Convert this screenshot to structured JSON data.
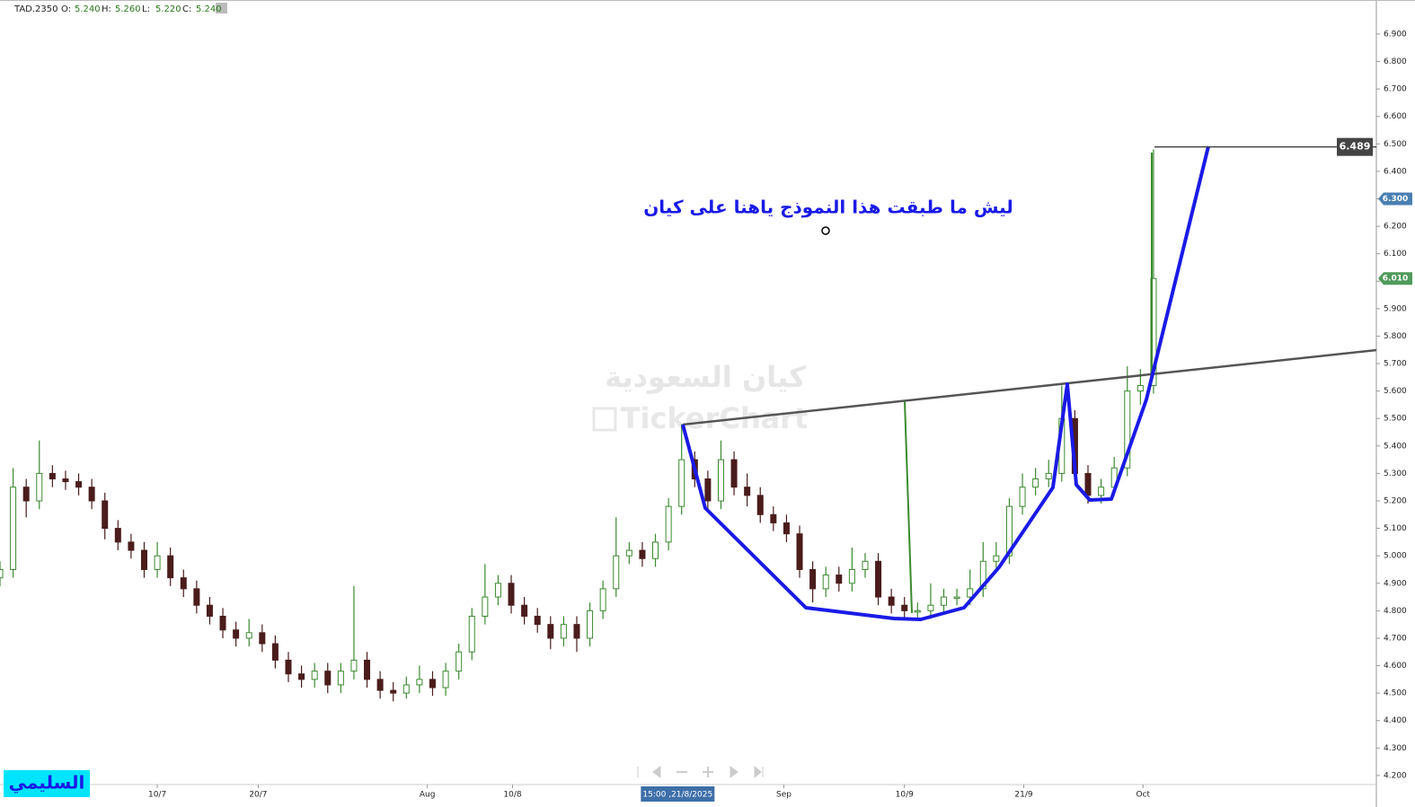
{
  "header": {
    "symbol": "TAD.2350",
    "ohlc": [
      {
        "label": "O:",
        "value": "5.240"
      },
      {
        "label": "H:",
        "value": "5.260"
      },
      {
        "label": "L:",
        "value": "5.220"
      },
      {
        "label": "C:",
        "value": "5.240"
      }
    ]
  },
  "chart_data": {
    "type": "candlestick",
    "annotation": "ليش ما طبقت هذا النموذج ياهنا على كيان",
    "watermark": "كيان السعودية",
    "brand": "TickerChart",
    "author": "السليمي",
    "crosshair_label": "15:00 ,21/8/2025",
    "up_color": "#3a8a2e",
    "down_color": "#4a1c1c",
    "xlim": [
      0,
      105
    ],
    "xticks": [
      {
        "value": 12,
        "label": "10/7"
      },
      {
        "value": 19.7,
        "label": "20/7"
      },
      {
        "value": 32.6,
        "label": "Aug"
      },
      {
        "value": 39.1,
        "label": "10/8"
      },
      {
        "value": 59.8,
        "label": "Sep"
      },
      {
        "value": 69,
        "label": "10/9"
      },
      {
        "value": 78.1,
        "label": "21/9"
      },
      {
        "value": 87.2,
        "label": "Oct"
      }
    ],
    "crosshair_x": 51.7,
    "ylim": [
      4.167,
      7.024
    ],
    "yticks": [
      {
        "value": 4.2,
        "label": "4.200"
      },
      {
        "value": 4.3,
        "label": "4.300"
      },
      {
        "value": 4.4,
        "label": "4.400"
      },
      {
        "value": 4.5,
        "label": "4.500"
      },
      {
        "value": 4.6,
        "label": "4.600"
      },
      {
        "value": 4.7,
        "label": "4.700"
      },
      {
        "value": 4.8,
        "label": "4.800"
      },
      {
        "value": 4.9,
        "label": "4.900"
      },
      {
        "value": 5.0,
        "label": "5.000"
      },
      {
        "value": 5.1,
        "label": "5.100"
      },
      {
        "value": 5.2,
        "label": "5.200"
      },
      {
        "value": 5.3,
        "label": "5.300"
      },
      {
        "value": 5.4,
        "label": "5.400"
      },
      {
        "value": 5.5,
        "label": "5.500"
      },
      {
        "value": 5.6,
        "label": "5.600"
      },
      {
        "value": 5.7,
        "label": "5.700"
      },
      {
        "value": 5.8,
        "label": "5.800"
      },
      {
        "value": 5.9,
        "label": "5.900"
      },
      {
        "value": 6.0,
        "label": "6.000"
      },
      {
        "value": 6.1,
        "label": "6.100"
      },
      {
        "value": 6.2,
        "label": "6.200"
      },
      {
        "value": 6.3,
        "label": "6.300"
      },
      {
        "value": 6.4,
        "label": "6.400"
      },
      {
        "value": 6.5,
        "label": "6.500"
      },
      {
        "value": 6.6,
        "label": "6.600"
      },
      {
        "value": 6.7,
        "label": "6.700"
      },
      {
        "value": 6.8,
        "label": "6.800"
      },
      {
        "value": 6.9,
        "label": "6.900"
      }
    ],
    "price_labels": [
      {
        "value": 6.489,
        "color": "#444444",
        "line": true
      },
      {
        "value": 6.3,
        "label": "6.300",
        "color": "#4a7fb0"
      },
      {
        "value": 6.01,
        "label": "6.010",
        "color": "#4f9a5a"
      }
    ],
    "x": [
      0,
      1,
      2,
      3,
      4,
      5,
      6,
      7,
      8,
      9,
      10,
      11,
      12,
      13,
      14,
      15,
      16,
      17,
      18,
      19,
      20,
      21,
      22,
      23,
      24,
      25,
      26,
      27,
      28,
      29,
      30,
      31,
      32,
      33,
      34,
      35,
      36,
      37,
      38,
      39,
      40,
      41,
      42,
      43,
      44,
      45,
      46,
      47,
      48,
      49,
      50,
      51,
      52,
      53,
      54,
      55,
      56,
      57,
      58,
      59,
      60,
      61,
      62,
      63,
      64,
      65,
      66,
      67,
      68,
      69,
      70,
      71,
      72,
      73,
      74,
      75,
      76,
      77,
      78,
      79,
      80,
      81,
      82,
      83,
      84,
      85,
      86,
      87,
      88
    ],
    "open": [
      4.92,
      4.95,
      5.25,
      5.2,
      5.3,
      5.28,
      5.27,
      5.25,
      5.2,
      5.1,
      5.05,
      5.02,
      4.95,
      5.0,
      4.92,
      4.88,
      4.82,
      4.78,
      4.73,
      4.7,
      4.72,
      4.68,
      4.62,
      4.57,
      4.55,
      4.58,
      4.53,
      4.58,
      4.62,
      4.55,
      4.51,
      4.5,
      4.53,
      4.55,
      4.52,
      4.58,
      4.65,
      4.78,
      4.85,
      4.9,
      4.82,
      4.78,
      4.75,
      4.7,
      4.75,
      4.7,
      4.8,
      4.88,
      5.0,
      5.02,
      4.99,
      5.05,
      5.18,
      5.35,
      5.28,
      5.2,
      5.35,
      5.25,
      5.22,
      5.15,
      5.12,
      5.08,
      4.95,
      4.88,
      4.93,
      4.9,
      4.95,
      4.98,
      4.85,
      4.82,
      4.8,
      4.8,
      4.82,
      4.85,
      4.85,
      4.88,
      4.98,
      5.0,
      5.18,
      5.25,
      5.28,
      5.3,
      5.5,
      5.3,
      5.22,
      5.25,
      5.32,
      5.6,
      5.62
    ],
    "high": [
      4.98,
      5.32,
      5.28,
      5.42,
      5.33,
      5.31,
      5.3,
      5.28,
      5.23,
      5.13,
      5.08,
      5.05,
      5.05,
      5.03,
      4.95,
      4.91,
      4.85,
      4.81,
      4.76,
      4.77,
      4.75,
      4.71,
      4.65,
      4.6,
      4.61,
      4.61,
      4.61,
      4.89,
      4.65,
      4.58,
      4.54,
      4.56,
      4.6,
      4.58,
      4.61,
      4.68,
      4.81,
      4.97,
      4.93,
      4.93,
      4.85,
      4.81,
      4.78,
      4.78,
      4.78,
      4.83,
      4.91,
      5.14,
      5.05,
      5.05,
      5.08,
      5.21,
      5.48,
      5.38,
      5.31,
      5.42,
      5.38,
      5.3,
      5.25,
      5.18,
      5.15,
      5.11,
      4.98,
      4.96,
      4.96,
      5.03,
      5.01,
      5.01,
      4.88,
      4.85,
      4.83,
      4.9,
      4.88,
      4.88,
      4.95,
      5.05,
      5.05,
      5.21,
      5.3,
      5.32,
      5.35,
      5.62,
      5.53,
      5.33,
      5.28,
      5.36,
      5.69,
      5.68,
      6.48
    ],
    "low": [
      4.89,
      4.92,
      5.14,
      5.17,
      5.25,
      5.24,
      5.22,
      5.17,
      5.06,
      5.02,
      4.99,
      4.92,
      4.92,
      4.89,
      4.85,
      4.79,
      4.75,
      4.7,
      4.67,
      4.67,
      4.65,
      4.59,
      4.54,
      4.52,
      4.52,
      4.5,
      4.5,
      4.55,
      4.52,
      4.48,
      4.47,
      4.48,
      4.5,
      4.49,
      4.49,
      4.55,
      4.62,
      4.75,
      4.82,
      4.79,
      4.75,
      4.72,
      4.66,
      4.67,
      4.65,
      4.67,
      4.77,
      4.85,
      4.97,
      4.96,
      4.96,
      5.02,
      5.15,
      5.25,
      5.17,
      5.17,
      5.22,
      5.18,
      5.12,
      5.09,
      5.05,
      4.92,
      4.83,
      4.85,
      4.87,
      4.87,
      4.92,
      4.82,
      4.79,
      4.77,
      4.77,
      4.77,
      4.79,
      4.82,
      4.82,
      4.85,
      4.95,
      4.97,
      5.15,
      5.22,
      5.25,
      5.27,
      5.27,
      5.19,
      5.19,
      5.22,
      5.29,
      5.55,
      5.59
    ],
    "close": [
      4.95,
      5.25,
      5.2,
      5.3,
      5.28,
      5.27,
      5.25,
      5.2,
      5.1,
      5.05,
      5.02,
      4.95,
      5.0,
      4.92,
      4.88,
      4.82,
      4.78,
      4.73,
      4.7,
      4.72,
      4.68,
      4.62,
      4.57,
      4.55,
      4.58,
      4.53,
      4.58,
      4.62,
      4.55,
      4.51,
      4.5,
      4.53,
      4.55,
      4.52,
      4.58,
      4.65,
      4.78,
      4.85,
      4.9,
      4.82,
      4.78,
      4.75,
      4.7,
      4.75,
      4.7,
      4.8,
      4.88,
      5.0,
      5.02,
      4.99,
      5.05,
      5.18,
      5.35,
      5.28,
      5.2,
      5.35,
      5.25,
      5.22,
      5.15,
      5.12,
      5.08,
      4.95,
      4.88,
      4.93,
      4.9,
      4.95,
      4.98,
      4.85,
      4.82,
      4.8,
      4.8,
      4.82,
      4.85,
      4.85,
      4.88,
      4.98,
      5.0,
      5.18,
      5.25,
      5.28,
      5.3,
      5.5,
      5.3,
      5.22,
      5.25,
      5.32,
      5.6,
      5.62,
      6.01
    ]
  }
}
